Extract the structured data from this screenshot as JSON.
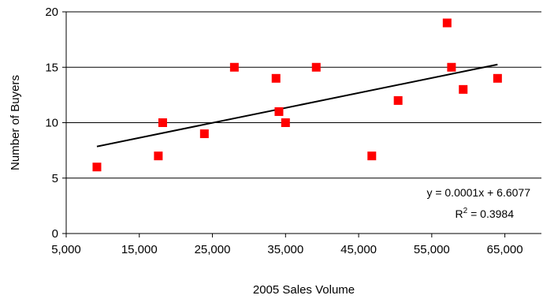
{
  "chart_data": {
    "type": "scatter",
    "title": "",
    "xlabel": "2005 Sales Volume",
    "ylabel": "Number of Buyers",
    "xlim": [
      5000,
      70000
    ],
    "ylim": [
      0,
      20
    ],
    "x_tick_values": [
      5000,
      15000,
      25000,
      35000,
      45000,
      55000,
      65000
    ],
    "x_tick_labels": [
      "5,000",
      "15,000",
      "25,000",
      "35,000",
      "45,000",
      "55,000",
      "65,000"
    ],
    "y_tick_values": [
      0,
      5,
      10,
      15,
      20
    ],
    "y_tick_labels": [
      "0",
      "5",
      "10",
      "15",
      "20"
    ],
    "grid": "horizontal",
    "legend": "none",
    "series": [
      {
        "marker": "square",
        "color": "#ff0000",
        "points": [
          {
            "x": 9200,
            "y": 6
          },
          {
            "x": 17600,
            "y": 7
          },
          {
            "x": 18200,
            "y": 10
          },
          {
            "x": 23900,
            "y": 9
          },
          {
            "x": 28000,
            "y": 15
          },
          {
            "x": 33700,
            "y": 14
          },
          {
            "x": 34100,
            "y": 11
          },
          {
            "x": 35000,
            "y": 10
          },
          {
            "x": 39200,
            "y": 15
          },
          {
            "x": 46800,
            "y": 7
          },
          {
            "x": 50400,
            "y": 12
          },
          {
            "x": 57100,
            "y": 19
          },
          {
            "x": 57700,
            "y": 15
          },
          {
            "x": 59300,
            "y": 13
          },
          {
            "x": 64000,
            "y": 14
          }
        ]
      }
    ],
    "trendline": {
      "type": "linear",
      "x_range": [
        9200,
        64000
      ],
      "y_range": [
        7.85,
        15.25
      ],
      "color": "#000000"
    },
    "annotations": {
      "equation": "y = 0.0001x + 6.6077",
      "r2_label": "R",
      "r2_sup": "2",
      "r2_value": " = 0.3984"
    }
  }
}
